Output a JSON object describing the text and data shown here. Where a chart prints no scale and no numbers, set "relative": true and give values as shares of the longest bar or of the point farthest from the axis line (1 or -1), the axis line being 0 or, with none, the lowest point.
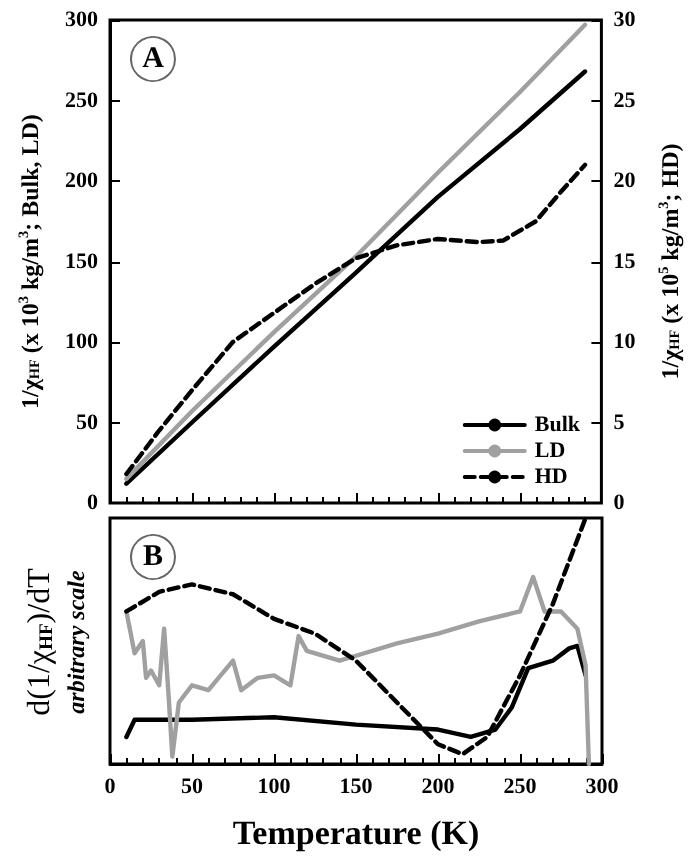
{
  "chart_data": [
    {
      "type": "line",
      "title": "A",
      "ylabel": "1/χ$_{HF}$ (x 10$^{3}$ kg/m$^{3}$; Bulk, LD)",
      "y2label": "1/χ$_{HF}$ (x 10$^{5}$ kg/m$^{3}$; HD)",
      "xlim": [
        0,
        300
      ],
      "xticks": [
        0,
        50,
        100,
        150,
        200,
        250,
        300
      ],
      "ylim": [
        0,
        300
      ],
      "yticks": [
        0,
        50,
        100,
        150,
        200,
        250,
        300
      ],
      "y2lim": [
        0,
        30
      ],
      "y2ticks": [
        0,
        5,
        10,
        15,
        20,
        25,
        30
      ],
      "tick_labels": "y",
      "legend": "bottom right",
      "grid": false,
      "marker": "none",
      "series": [
        {
          "name": "Bulk",
          "color": "#000000",
          "x": [
            10,
            50,
            100,
            150,
            200,
            250,
            290
          ],
          "values": [
            12,
            50,
            97,
            143,
            190,
            232,
            268
          ]
        },
        {
          "name": "LD",
          "color": "#a0a0a0",
          "x": [
            10,
            50,
            100,
            150,
            200,
            250,
            290
          ],
          "values": [
            15,
            57,
            106,
            153,
            205,
            255,
            297
          ]
        },
        {
          "name": "HD",
          "color": "#000000",
          "axis": "y2",
          "line_style": "dashed",
          "x": [
            10,
            30,
            50,
            75,
            100,
            125,
            150,
            175,
            200,
            225,
            240,
            260,
            275,
            290
          ],
          "values": [
            1.8,
            4.5,
            7,
            10,
            11.8,
            13.6,
            15.2,
            16,
            16.4,
            16.2,
            16.3,
            17.5,
            19.3,
            21
          ]
        }
      ]
    },
    {
      "type": "line",
      "title": "B",
      "ylabel": "d(1/χ$_{HF}$)/dT",
      "annotations": [
        "arbitrary scale"
      ],
      "xlabel": "Temperature (K)",
      "xlim": [
        0,
        300
      ],
      "xticks": [
        0,
        50,
        100,
        150,
        200,
        250,
        300
      ],
      "relative": true,
      "grid": false,
      "marker": "none",
      "series": [
        {
          "color": "#000000",
          "x": [
            10,
            15,
            50,
            100,
            150,
            200,
            220,
            235,
            245,
            255,
            270,
            280,
            285,
            290
          ],
          "values": [
            0.11,
            0.18,
            0.18,
            0.19,
            0.16,
            0.14,
            0.11,
            0.14,
            0.23,
            0.39,
            0.42,
            0.47,
            0.48,
            0.36
          ]
        },
        {
          "color": "#a0a0a0",
          "x": [
            10,
            15,
            20,
            22,
            25,
            30,
            33,
            36,
            38,
            42,
            50,
            60,
            75,
            80,
            90,
            100,
            110,
            115,
            120,
            140,
            150,
            175,
            200,
            225,
            250,
            258,
            265,
            275,
            285,
            290,
            292
          ],
          "values": [
            0.62,
            0.45,
            0.5,
            0.35,
            0.38,
            0.32,
            0.55,
            0.25,
            0.03,
            0.25,
            0.32,
            0.3,
            0.42,
            0.3,
            0.35,
            0.36,
            0.32,
            0.52,
            0.46,
            0.42,
            0.44,
            0.49,
            0.53,
            0.58,
            0.62,
            0.76,
            0.62,
            0.62,
            0.55,
            0.4,
            0
          ]
        },
        {
          "color": "#000000",
          "line_style": "dashed",
          "x": [
            10,
            30,
            50,
            75,
            100,
            125,
            150,
            175,
            200,
            215,
            230,
            250,
            270,
            290
          ],
          "values": [
            0.62,
            0.7,
            0.73,
            0.69,
            0.59,
            0.53,
            0.42,
            0.25,
            0.08,
            0.04,
            0.11,
            0.36,
            0.65,
            1
          ]
        }
      ]
    }
  ]
}
